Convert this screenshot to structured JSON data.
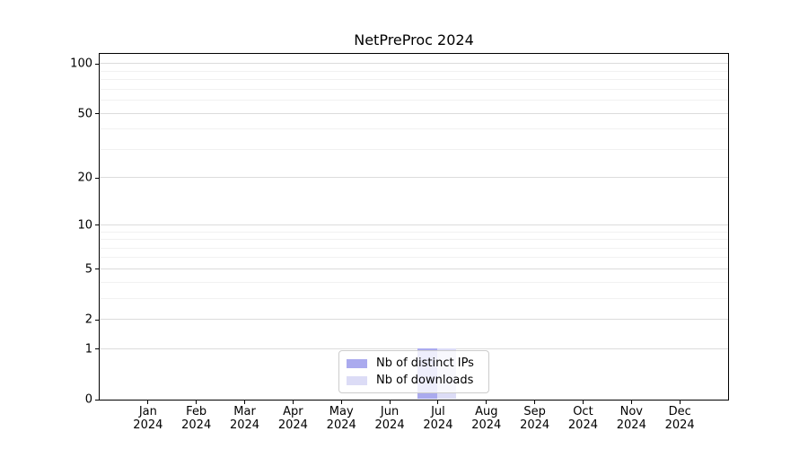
{
  "chart_data": {
    "type": "bar",
    "title": "NetPreProc 2024",
    "categories": [
      "Jan 2024",
      "Feb 2024",
      "Mar 2024",
      "Apr 2024",
      "May 2024",
      "Jun 2024",
      "Jul 2024",
      "Aug 2024",
      "Sep 2024",
      "Oct 2024",
      "Nov 2024",
      "Dec 2024"
    ],
    "series": [
      {
        "name": "Nb of distinct IPs",
        "color": "#aaaaee",
        "values": [
          0,
          0,
          0,
          0,
          0,
          0,
          1,
          0,
          0,
          0,
          0,
          0
        ]
      },
      {
        "name": "Nb of downloads",
        "color": "#dcdcf6",
        "values": [
          0,
          0,
          0,
          0,
          0,
          0,
          1,
          0,
          0,
          0,
          0,
          0
        ]
      }
    ],
    "xlabel": "",
    "ylabel": "",
    "yscale": "log1p",
    "yticks": [
      0,
      1,
      2,
      5,
      10,
      20,
      50,
      100
    ],
    "minor_yticks": [
      3,
      4,
      6,
      7,
      8,
      9,
      30,
      40,
      60,
      70,
      80,
      90
    ],
    "ylim": [
      0,
      115
    ],
    "grid": true,
    "legend_position": "lower center",
    "colors": {
      "major_grid": "#dcdcdc",
      "minor_grid": "#f1f1f1",
      "axis": "#000000",
      "legend_border": "#cccccc",
      "background": "#ffffff",
      "text": "#000000"
    }
  }
}
